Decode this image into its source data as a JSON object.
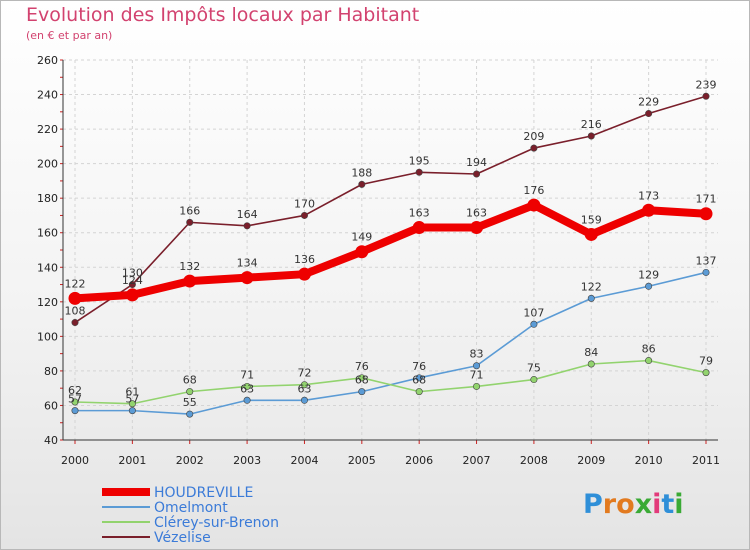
{
  "header": {
    "title": "Evolution des Impôts locaux par Habitant",
    "subtitle": "(en € et par an)"
  },
  "logo": {
    "text": "Proxiti"
  },
  "chart_data": {
    "type": "line",
    "title": "Evolution des Impôts locaux par Habitant",
    "subtitle": "(en € et par an)",
    "xlabel": "",
    "ylabel": "",
    "x": [
      "2000",
      "2001",
      "2002",
      "2003",
      "2004",
      "2005",
      "2006",
      "2007",
      "2008",
      "2009",
      "2010",
      "2011"
    ],
    "ylim": [
      40,
      260
    ],
    "yticks": [
      40,
      60,
      80,
      100,
      120,
      140,
      160,
      180,
      200,
      220,
      240,
      260
    ],
    "grid": true,
    "legend_position": "bottom-left",
    "series": [
      {
        "name": "HOUDREVILLE",
        "color": "#ee0000",
        "values": [
          122,
          124,
          132,
          134,
          136,
          149,
          163,
          163,
          176,
          159,
          173,
          171
        ]
      },
      {
        "name": "Omelmont",
        "color": "#5b9bd5",
        "values": [
          57,
          57,
          55,
          63,
          63,
          68,
          76,
          83,
          107,
          122,
          129,
          137
        ]
      },
      {
        "name": "Clérey-sur-Brenon",
        "color": "#92d36e",
        "values": [
          62,
          61,
          68,
          71,
          72,
          76,
          68,
          71,
          75,
          84,
          86,
          79
        ]
      },
      {
        "name": "Vézelise",
        "color": "#7a1f2b",
        "values": [
          108,
          130,
          166,
          164,
          170,
          188,
          195,
          194,
          209,
          216,
          229,
          239
        ]
      }
    ]
  }
}
